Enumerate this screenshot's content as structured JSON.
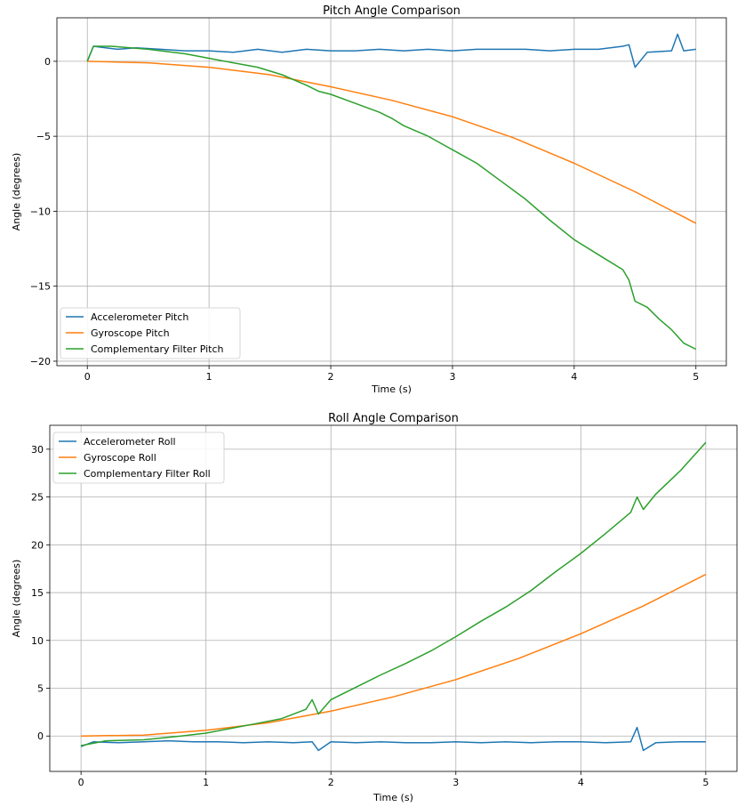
{
  "chart_data": [
    {
      "type": "line",
      "title": "Pitch Angle Comparison",
      "xlabel": "Time (s)",
      "ylabel": "Angle (degrees)",
      "xlim": [
        -0.25,
        5.25
      ],
      "ylim": [
        -20.3,
        2.9
      ],
      "xticks": [
        0,
        1,
        2,
        3,
        4,
        5
      ],
      "xtick_labels": [
        "0",
        "1",
        "2",
        "3",
        "4",
        "5"
      ],
      "yticks": [
        0,
        -5,
        -10,
        -15,
        -20
      ],
      "ytick_labels": [
        "0",
        "−5",
        "−10",
        "−15",
        "−20"
      ],
      "grid": true,
      "legend_position": "lower-left",
      "series": [
        {
          "name": "Accelerometer Pitch",
          "color": "#1f77b4",
          "x": [
            0,
            0.05,
            0.15,
            0.25,
            0.4,
            0.6,
            0.8,
            1.0,
            1.2,
            1.4,
            1.6,
            1.8,
            2.0,
            2.2,
            2.4,
            2.6,
            2.8,
            3.0,
            3.2,
            3.4,
            3.6,
            3.8,
            4.0,
            4.2,
            4.4,
            4.45,
            4.5,
            4.6,
            4.8,
            4.85,
            4.9,
            5.0
          ],
          "y": [
            0,
            1.0,
            0.9,
            0.8,
            0.9,
            0.8,
            0.7,
            0.7,
            0.6,
            0.8,
            0.6,
            0.8,
            0.7,
            0.7,
            0.8,
            0.7,
            0.8,
            0.7,
            0.8,
            0.8,
            0.8,
            0.7,
            0.8,
            0.8,
            1.0,
            1.1,
            -0.4,
            0.6,
            0.7,
            1.8,
            0.7,
            0.8
          ]
        },
        {
          "name": "Gyroscope Pitch",
          "color": "#ff7f0e",
          "x": [
            0,
            0.5,
            1.0,
            1.5,
            2.0,
            2.5,
            3.0,
            3.5,
            4.0,
            4.5,
            5.0
          ],
          "y": [
            0,
            -0.1,
            -0.4,
            -0.9,
            -1.7,
            -2.6,
            -3.7,
            -5.1,
            -6.8,
            -8.7,
            -10.8
          ]
        },
        {
          "name": "Complementary Filter Pitch",
          "color": "#2ca02c",
          "x": [
            0,
            0.05,
            0.2,
            0.5,
            0.8,
            1.0,
            1.2,
            1.4,
            1.6,
            1.8,
            1.9,
            2.0,
            2.2,
            2.4,
            2.5,
            2.6,
            2.8,
            3.0,
            3.2,
            3.4,
            3.6,
            3.8,
            4.0,
            4.2,
            4.4,
            4.45,
            4.5,
            4.6,
            4.7,
            4.8,
            4.9,
            5.0
          ],
          "y": [
            0,
            1.0,
            1.0,
            0.8,
            0.5,
            0.2,
            -0.1,
            -0.4,
            -0.9,
            -1.6,
            -2.0,
            -2.2,
            -2.8,
            -3.4,
            -3.8,
            -4.3,
            -5.0,
            -5.9,
            -6.8,
            -8.0,
            -9.2,
            -10.6,
            -11.9,
            -12.9,
            -13.9,
            -14.6,
            -16.0,
            -16.4,
            -17.2,
            -17.9,
            -18.8,
            -19.2
          ]
        }
      ]
    },
    {
      "type": "line",
      "title": "Roll Angle Comparison",
      "xlabel": "Time (s)",
      "ylabel": "Angle (degrees)",
      "xlim": [
        -0.25,
        5.25
      ],
      "ylim": [
        -3.7,
        32.5
      ],
      "xticks": [
        0,
        1,
        2,
        3,
        4,
        5
      ],
      "xtick_labels": [
        "0",
        "1",
        "2",
        "3",
        "4",
        "5"
      ],
      "yticks": [
        0,
        5,
        10,
        15,
        20,
        25,
        30
      ],
      "ytick_labels": [
        "0",
        "5",
        "10",
        "15",
        "20",
        "25",
        "30"
      ],
      "grid": true,
      "legend_position": "upper-left",
      "series": [
        {
          "name": "Accelerometer Roll",
          "color": "#1f77b4",
          "x": [
            0,
            0.1,
            0.3,
            0.5,
            0.7,
            0.9,
            1.1,
            1.3,
            1.5,
            1.7,
            1.85,
            1.9,
            2.0,
            2.2,
            2.4,
            2.6,
            2.8,
            3.0,
            3.2,
            3.4,
            3.6,
            3.8,
            4.0,
            4.2,
            4.4,
            4.45,
            4.5,
            4.6,
            4.8,
            5.0
          ],
          "y": [
            -1.1,
            -0.6,
            -0.7,
            -0.6,
            -0.5,
            -0.6,
            -0.6,
            -0.7,
            -0.6,
            -0.7,
            -0.6,
            -1.5,
            -0.6,
            -0.7,
            -0.6,
            -0.7,
            -0.7,
            -0.6,
            -0.7,
            -0.6,
            -0.7,
            -0.6,
            -0.6,
            -0.7,
            -0.6,
            0.9,
            -1.5,
            -0.7,
            -0.6,
            -0.6
          ]
        },
        {
          "name": "Gyroscope Roll",
          "color": "#ff7f0e",
          "x": [
            0,
            0.5,
            1.0,
            1.5,
            2.0,
            2.5,
            3.0,
            3.5,
            4.0,
            4.5,
            5.0
          ],
          "y": [
            0,
            0.1,
            0.6,
            1.4,
            2.6,
            4.1,
            5.9,
            8.1,
            10.7,
            13.6,
            16.9
          ]
        },
        {
          "name": "Complementary Filter Roll",
          "color": "#2ca02c",
          "x": [
            0,
            0.2,
            0.5,
            0.8,
            1.0,
            1.2,
            1.4,
            1.6,
            1.8,
            1.85,
            1.9,
            2.0,
            2.2,
            2.4,
            2.6,
            2.8,
            3.0,
            3.2,
            3.4,
            3.6,
            3.8,
            4.0,
            4.2,
            4.4,
            4.45,
            4.5,
            4.6,
            4.8,
            5.0
          ],
          "y": [
            -1.0,
            -0.5,
            -0.4,
            0.0,
            0.3,
            0.8,
            1.3,
            1.8,
            2.8,
            3.8,
            2.3,
            3.8,
            5.1,
            6.4,
            7.6,
            8.9,
            10.4,
            12.0,
            13.5,
            15.2,
            17.2,
            19.1,
            21.2,
            23.4,
            25.0,
            23.7,
            25.3,
            27.8,
            30.7
          ]
        }
      ]
    }
  ]
}
